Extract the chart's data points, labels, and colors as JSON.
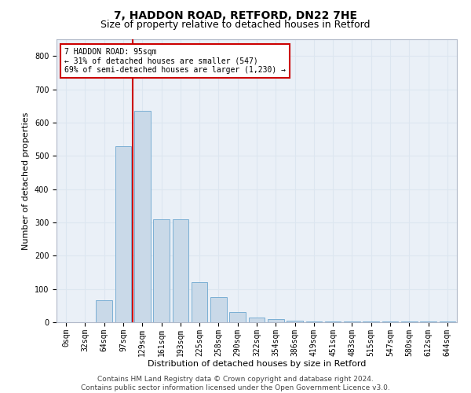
{
  "title1": "7, HADDON ROAD, RETFORD, DN22 7HE",
  "title2": "Size of property relative to detached houses in Retford",
  "xlabel": "Distribution of detached houses by size in Retford",
  "ylabel": "Number of detached properties",
  "bar_labels": [
    "0sqm",
    "32sqm",
    "64sqm",
    "97sqm",
    "129sqm",
    "161sqm",
    "193sqm",
    "225sqm",
    "258sqm",
    "290sqm",
    "322sqm",
    "354sqm",
    "386sqm",
    "419sqm",
    "451sqm",
    "483sqm",
    "515sqm",
    "547sqm",
    "580sqm",
    "612sqm",
    "644sqm"
  ],
  "bar_heights": [
    0,
    0,
    65,
    530,
    635,
    310,
    310,
    120,
    75,
    30,
    15,
    10,
    5,
    3,
    3,
    3,
    3,
    3,
    3,
    3,
    3
  ],
  "bar_color": "#c9d9e8",
  "bar_edge_color": "#7bafd4",
  "grid_color": "#dce6f0",
  "bg_color": "#eaf0f7",
  "vline_color": "#cc0000",
  "annotation_text": "7 HADDON ROAD: 95sqm\n← 31% of detached houses are smaller (547)\n69% of semi-detached houses are larger (1,230) →",
  "annotation_box_color": "#ffffff",
  "annotation_box_edge": "#cc0000",
  "ylim": [
    0,
    850
  ],
  "yticks": [
    0,
    100,
    200,
    300,
    400,
    500,
    600,
    700,
    800
  ],
  "footer": "Contains HM Land Registry data © Crown copyright and database right 2024.\nContains public sector information licensed under the Open Government Licence v3.0.",
  "title1_fontsize": 10,
  "title2_fontsize": 9,
  "xlabel_fontsize": 8,
  "ylabel_fontsize": 8,
  "tick_fontsize": 7,
  "footer_fontsize": 6.5
}
